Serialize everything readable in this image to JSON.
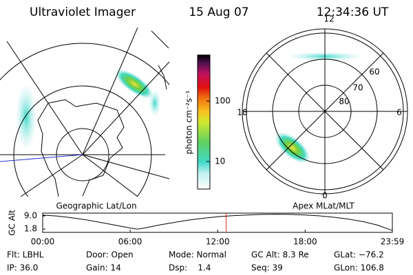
{
  "header": {
    "title": "Ultraviolet Imager",
    "date": "15 Aug 07",
    "time": "12:34:36 UT"
  },
  "left_panel": {
    "label": "Geographic Lat/Lon"
  },
  "right_panel": {
    "label": "Apex MLat/MLT",
    "mlt_labels": [
      "12",
      "18",
      "6",
      "0"
    ],
    "lat_labels": [
      "60",
      "70",
      "80"
    ]
  },
  "colorbar": {
    "axis_label": "photon cm⁻²s⁻¹",
    "scale": "log",
    "clim": [
      3.5,
      580
    ],
    "ticks": [
      10,
      100
    ]
  },
  "chart_data": {
    "type": "line",
    "ylabel": "GC Alt",
    "x": [
      0,
      1,
      2,
      3,
      4,
      5,
      6,
      6.5,
      7,
      8,
      9,
      10,
      11,
      12,
      13,
      14,
      15,
      16,
      17,
      18,
      19,
      20,
      21,
      22,
      23,
      23.98
    ],
    "series": [
      {
        "color": "#000000",
        "values": [
          9.4,
          8.9,
          8.0,
          6.8,
          5.4,
          3.9,
          2.4,
          1.8,
          2.4,
          4.0,
          5.4,
          6.7,
          7.7,
          8.5,
          9.1,
          9.5,
          9.8,
          9.9,
          9.8,
          9.5,
          9.0,
          8.2,
          7.2,
          5.8,
          3.9,
          1.0
        ]
      }
    ],
    "xlim": [
      0,
      23.98
    ],
    "ylim": [
      0,
      10.5
    ],
    "xticks": [
      {
        "value": 0,
        "label": "00:00"
      },
      {
        "value": 6,
        "label": "06:00"
      },
      {
        "value": 12,
        "label": "12:00"
      },
      {
        "value": 18,
        "label": "18:00"
      },
      {
        "value": 23.98,
        "label": "23:59"
      }
    ],
    "yticks": [
      1.8,
      {
        "value": 9,
        "label": "9.0"
      }
    ],
    "cursor_x": 12.58,
    "cursor_color": "#e03030"
  },
  "footer": {
    "rows": [
      [
        "Flt: LBHL",
        "Door: Open",
        "Mode: Normal",
        "GC Alt: 8.3 Re",
        "GLat: −76.2"
      ],
      [
        "IP: 36.0",
        "Gain: 14",
        "Dsp:    1.4",
        "Seq: 39",
        "GLon: 106.8"
      ]
    ]
  }
}
